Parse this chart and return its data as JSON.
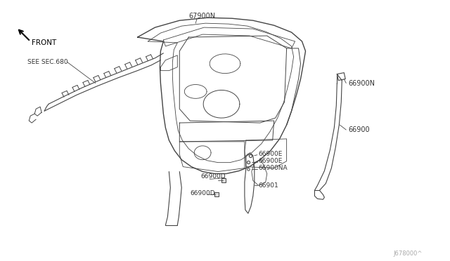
{
  "background_color": "#ffffff",
  "line_color": "#444444",
  "text_color": "#333333",
  "watermark": "J678000^",
  "labels": {
    "front_arrow": "FRONT",
    "see_sec": "SEE SEC.680",
    "label_67900N": "67900N",
    "label_66900N_top": "66900N",
    "label_66900": "66900",
    "label_66900E_1": "66900E",
    "label_66900E_2": "66900E",
    "label_66900NA": "66900NA",
    "label_66900D_1": "66900D",
    "label_66900D_2": "66900D",
    "label_66901": "66901"
  },
  "fig_width": 6.4,
  "fig_height": 3.72,
  "dpi": 100
}
